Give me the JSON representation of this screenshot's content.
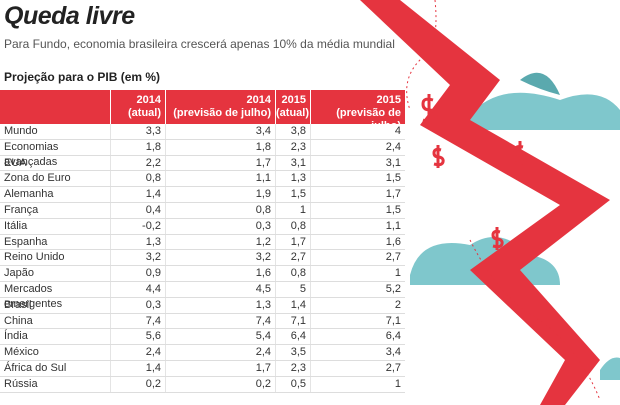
{
  "header": {
    "title": "Queda livre",
    "subtitle": "Para Fundo, economia brasileira crescerá apenas 10% da média mundial"
  },
  "table": {
    "caption": "Projeção para o PIB (em %)",
    "columns": [
      {
        "year": "2014",
        "note": "(atual)"
      },
      {
        "year": "2014",
        "note": "(previsão de julho)"
      },
      {
        "year": "2015",
        "note": "(atual)"
      },
      {
        "year": "2015",
        "note": "(previsão de julho)"
      }
    ],
    "rows": [
      [
        "Mundo",
        "3,3",
        "3,4",
        "3,8",
        "4"
      ],
      [
        "Economias avançadas",
        "1,8",
        "1,8",
        "2,3",
        "2,4"
      ],
      [
        "EUA",
        "2,2",
        "1,7",
        "3,1",
        "3,1"
      ],
      [
        "Zona do Euro",
        "0,8",
        "1,1",
        "1,3",
        "1,5"
      ],
      [
        "Alemanha",
        "1,4",
        "1,9",
        "1,5",
        "1,7"
      ],
      [
        "França",
        "0,4",
        "0,8",
        "1",
        "1,5"
      ],
      [
        "Itália",
        "-0,2",
        "0,3",
        "0,8",
        "1,1"
      ],
      [
        "Espanha",
        "1,3",
        "1,2",
        "1,7",
        "1,6"
      ],
      [
        "Reino Unido",
        "3,2",
        "3,2",
        "2,7",
        "2,7"
      ],
      [
        "Japão",
        "0,9",
        "1,6",
        "0,8",
        "1"
      ],
      [
        "Mercados emergentes",
        "4,4",
        "4,5",
        "5",
        "5,2"
      ],
      [
        "Brasil",
        "0,3",
        "1,3",
        "1,4",
        "2"
      ],
      [
        "China",
        "7,4",
        "7,4",
        "7,1",
        "7,1"
      ],
      [
        "Índia",
        "5,6",
        "5,4",
        "6,4",
        "6,4"
      ],
      [
        "México",
        "2,4",
        "2,4",
        "3,5",
        "3,4"
      ],
      [
        "África do Sul",
        "1,4",
        "1,7",
        "2,3",
        "2,7"
      ],
      [
        "Rússia",
        "0,2",
        "0,2",
        "0,5",
        "1"
      ]
    ]
  }
}
